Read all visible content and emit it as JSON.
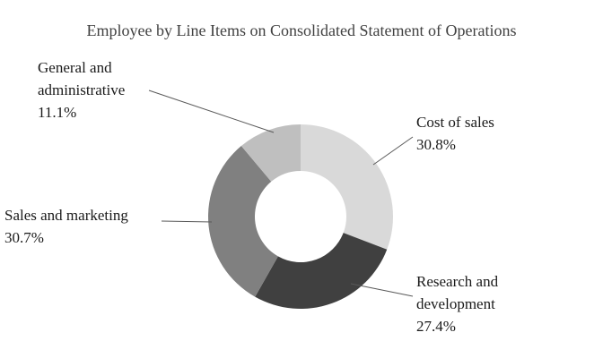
{
  "chart_data": {
    "type": "pie",
    "subtype": "donut",
    "title": "Employee by Line Items on Consolidated Statement of Operations",
    "categories": [
      "Cost of sales",
      "Research and development",
      "Sales and marketing",
      "General and administrative"
    ],
    "values": [
      30.8,
      27.4,
      30.7,
      11.1
    ],
    "percent_labels": [
      "30.8%",
      "27.4%",
      "30.7%",
      "11.1%"
    ],
    "colors": [
      "#d9d9d9",
      "#404040",
      "#808080",
      "#bfbfbf"
    ],
    "start_angle_deg": 0,
    "direction": "clockwise",
    "legend_position": "none",
    "background": "#ffffff",
    "label_line_color": "#595959"
  }
}
